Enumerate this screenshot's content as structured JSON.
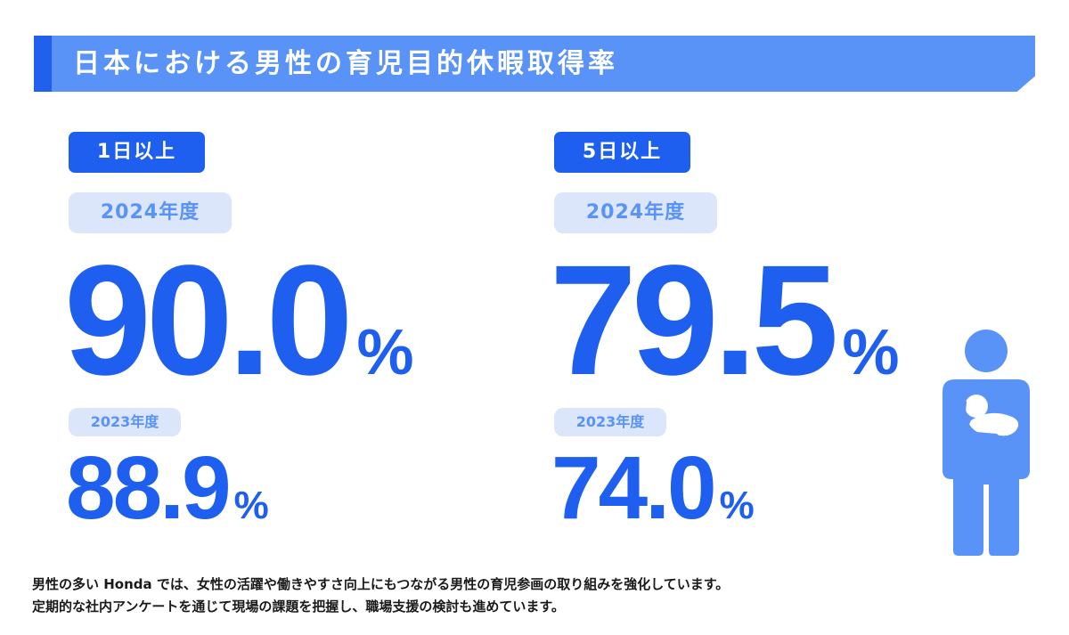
{
  "title": "日本における男性の育児目的休暇取得率",
  "left": {
    "tag": "1日以上",
    "current_year": "2024年度",
    "current_value": "90.0",
    "unit": "%",
    "prev_year": "2023年度",
    "prev_value": "88.9"
  },
  "right": {
    "tag": "5日以上",
    "current_year": "2024年度",
    "current_value": "79.5",
    "unit": "%",
    "prev_year": "2023年度",
    "prev_value": "74.0"
  },
  "footer": {
    "line1": "男性の多い Honda では、女性の活躍や働きやすさ向上にもつながる男性の育児参画の取り組みを強化しています。",
    "line2": "定期的な社内アンケートを通じて現場の課題を把握し、職場支援の検討も進めています。"
  },
  "colors": {
    "primary": "#1e5ff0",
    "banner": "#5a93f7",
    "year_pill_bg": "#dbe6fb",
    "figure": "#5a93f7"
  },
  "icons": [
    "father-holding-baby-icon"
  ]
}
